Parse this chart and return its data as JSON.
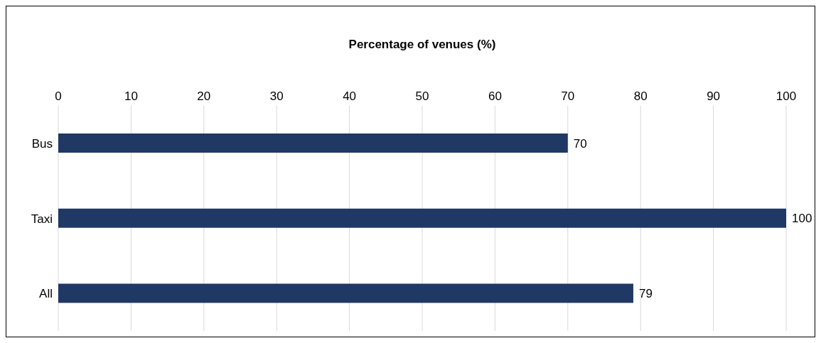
{
  "chart_data": {
    "type": "bar",
    "orientation": "horizontal",
    "xlabel": "Percentage of venues (%)",
    "categories": [
      "Bus",
      "Taxi",
      "All"
    ],
    "values": [
      70,
      100,
      79
    ],
    "color": "#203864",
    "xlim": [
      0,
      100
    ],
    "xticks": [
      0,
      10,
      20,
      30,
      40,
      50,
      60,
      70,
      80,
      90,
      100
    ],
    "grid": "x",
    "data_labels": true
  }
}
